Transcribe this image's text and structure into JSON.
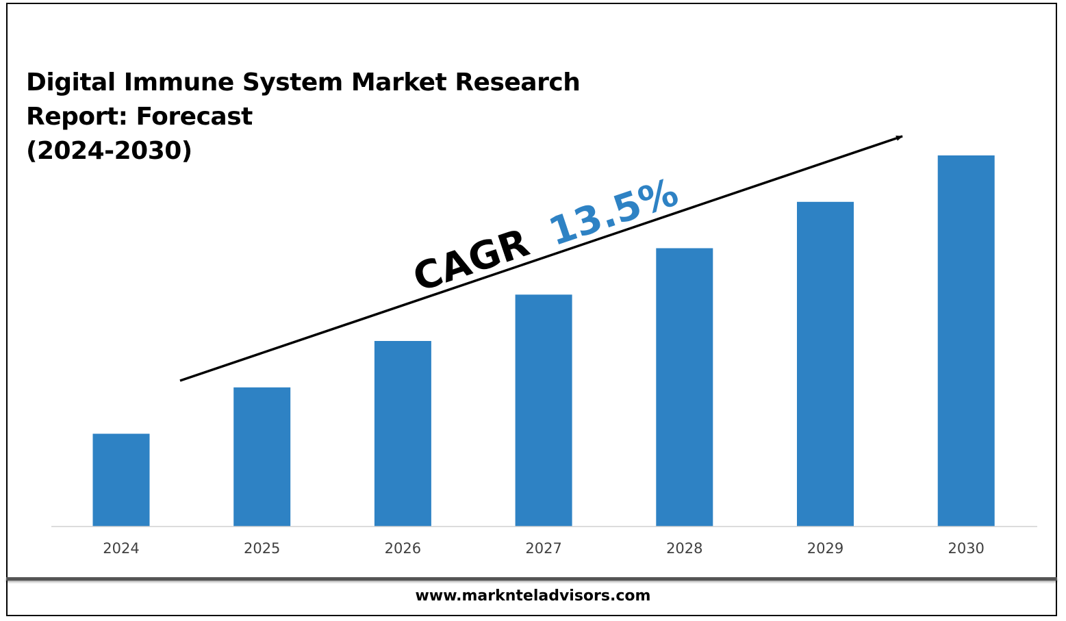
{
  "title_lines": [
    "Digital Immune System Market Research",
    "Report: Forecast",
    "(2024-2030)"
  ],
  "annotation": {
    "prefix": "CAGR",
    "value": "13.5%",
    "prefix_color": "#000000",
    "value_color": "#2E82C4"
  },
  "footer": {
    "website": "www.marknteladvisors.com"
  },
  "colors": {
    "bar": "#2E82C4",
    "axis": "#d0d0d0",
    "tick_label": "#404040"
  },
  "chart_data": {
    "type": "bar",
    "title": "Digital Immune System Market Research Report: Forecast (2024-2030)",
    "categories": [
      "2024",
      "2025",
      "2026",
      "2027",
      "2028",
      "2029",
      "2030"
    ],
    "values": [
      1.0,
      1.5,
      2.0,
      2.5,
      3.0,
      3.5,
      4.0
    ],
    "ylim": [
      0,
      4.0
    ],
    "grid": false,
    "legend": "none",
    "xlabel": "",
    "ylabel": ""
  }
}
